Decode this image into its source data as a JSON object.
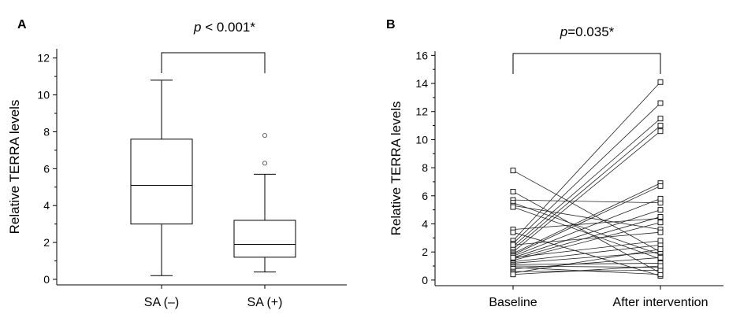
{
  "chart_data": [
    {
      "panel": "A",
      "type": "box",
      "ylabel": "Relative TERRA levels",
      "ylim": [
        -0.3,
        12.5
      ],
      "yticks": [
        0,
        2,
        4,
        6,
        8,
        10,
        12
      ],
      "categories": [
        "SA (–)",
        "SA (+)"
      ],
      "boxes": [
        {
          "category": "SA (–)",
          "whisker_low": 0.2,
          "q1": 3.0,
          "median": 5.1,
          "q3": 7.6,
          "whisker_high": 10.8,
          "outliers": []
        },
        {
          "category": "SA (+)",
          "whisker_low": 0.4,
          "q1": 1.2,
          "median": 1.9,
          "q3": 3.2,
          "whisker_high": 5.7,
          "outliers": [
            6.3,
            7.8
          ]
        }
      ],
      "significance": {
        "p_symbol": "p",
        "p_rest": " < 0.001*"
      }
    },
    {
      "panel": "B",
      "type": "line",
      "ylabel": "Relative TERRA levels",
      "ylim": [
        -0.4,
        16.3
      ],
      "yticks": [
        0,
        2,
        4,
        6,
        8,
        10,
        12,
        14,
        16
      ],
      "categories": [
        "Baseline",
        "After intervention"
      ],
      "pairs": [
        [
          7.8,
          2.0
        ],
        [
          6.3,
          0.5
        ],
        [
          5.7,
          5.5
        ],
        [
          5.5,
          1.8
        ],
        [
          5.3,
          3.6
        ],
        [
          5.2,
          1.5
        ],
        [
          3.6,
          4.4
        ],
        [
          3.4,
          0.3
        ],
        [
          2.8,
          14.1
        ],
        [
          2.6,
          12.6
        ],
        [
          2.4,
          11.5
        ],
        [
          2.2,
          11.0
        ],
        [
          2.0,
          10.6
        ],
        [
          1.9,
          6.9
        ],
        [
          1.8,
          6.7
        ],
        [
          1.7,
          5.8
        ],
        [
          1.6,
          5.0
        ],
        [
          1.5,
          4.5
        ],
        [
          1.4,
          4.1
        ],
        [
          1.3,
          2.5
        ],
        [
          1.2,
          2.0
        ],
        [
          1.1,
          1.2
        ],
        [
          1.0,
          0.9
        ],
        [
          0.9,
          0.4
        ],
        [
          0.8,
          1.6
        ],
        [
          0.6,
          0.7
        ],
        [
          0.5,
          2.2
        ],
        [
          0.4,
          1.0
        ],
        [
          2.5,
          3.4
        ],
        [
          1.6,
          2.8
        ]
      ],
      "significance": {
        "p_symbol": "p",
        "p_rest": "=0.035*"
      }
    }
  ]
}
